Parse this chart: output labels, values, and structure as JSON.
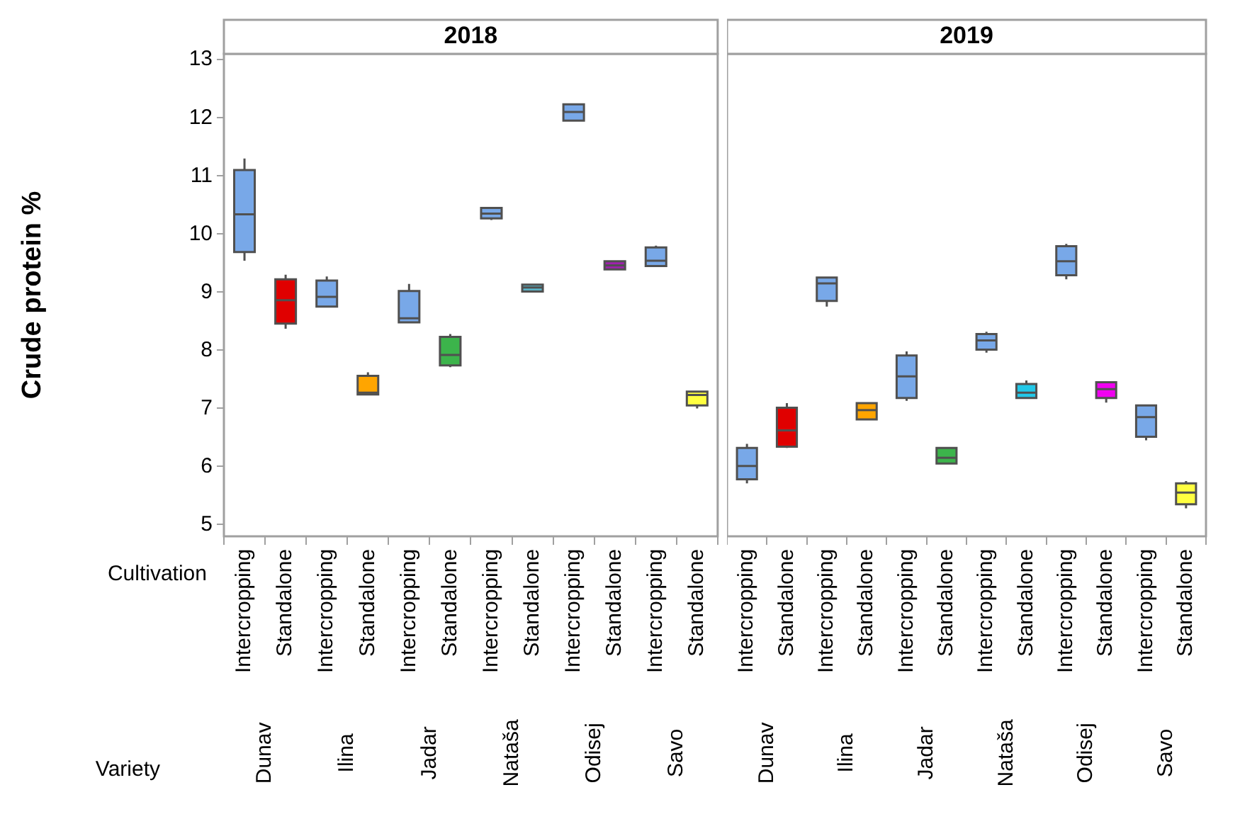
{
  "chart_data": [
    {
      "type": "box",
      "title": "2018",
      "ylabel": "Crude protein %",
      "xlabel": "Cultivation",
      "categories": [
        "Intercropping",
        "Standalone",
        "Intercropping",
        "Standalone",
        "Intercropping",
        "Standalone",
        "Intercropping",
        "Standalone",
        "Intercropping",
        "Standalone",
        "Intercropping",
        "Standalone"
      ],
      "boxes": [
        {
          "low": 9.54,
          "q1": 9.69,
          "median": 10.34,
          "q3": 11.1,
          "high": 11.3
        },
        {
          "low": 8.37,
          "q1": 8.46,
          "median": 8.86,
          "q3": 9.22,
          "high": 9.3
        },
        {
          "low": 8.75,
          "q1": 8.75,
          "median": 8.92,
          "q3": 9.2,
          "high": 9.27
        },
        {
          "low": 7.24,
          "q1": 7.24,
          "median": 7.27,
          "q3": 7.56,
          "high": 7.62
        },
        {
          "low": 8.48,
          "q1": 8.48,
          "median": 8.55,
          "q3": 9.02,
          "high": 9.14
        },
        {
          "low": 7.71,
          "q1": 7.74,
          "median": 7.92,
          "q3": 8.23,
          "high": 8.28
        },
        {
          "low": 10.24,
          "q1": 10.27,
          "median": 10.35,
          "q3": 10.45,
          "high": 10.45
        },
        {
          "low": 9.01,
          "q1": 9.01,
          "median": 9.08,
          "q3": 9.13,
          "high": 9.13
        },
        {
          "low": 11.95,
          "q1": 11.95,
          "median": 12.1,
          "q3": 12.23,
          "high": 12.23
        },
        {
          "low": 9.39,
          "q1": 9.39,
          "median": 9.46,
          "q3": 9.53,
          "high": 9.53
        },
        {
          "low": 9.45,
          "q1": 9.45,
          "median": 9.54,
          "q3": 9.77,
          "high": 9.8
        },
        {
          "low": 7.0,
          "q1": 7.05,
          "median": 7.23,
          "q3": 7.29,
          "high": 7.29
        }
      ],
      "colors": [
        "#78a8e8",
        "#e00000",
        "#78a8e8",
        "#ffa500",
        "#78a8e8",
        "#3cb44b",
        "#78a8e8",
        "#5ab4c8",
        "#78a8e8",
        "#a020b0",
        "#78a8e8",
        "#ffff40"
      ],
      "ylim": [
        4.8,
        13.1
      ],
      "yticks": [
        5,
        6,
        7,
        8,
        9,
        10,
        11,
        12,
        13
      ],
      "annotations": [
        "Variety",
        "Dunav",
        "Ilina",
        "Jadar",
        "Nataša",
        "Odisej",
        "Savo"
      ]
    },
    {
      "type": "box",
      "title": "2019",
      "categories": [
        "Intercropping",
        "Standalone",
        "Intercropping",
        "Standalone",
        "Intercropping",
        "Standalone",
        "Intercropping",
        "Standalone",
        "Intercropping",
        "Standalone",
        "Intercropping",
        "Standalone"
      ],
      "boxes": [
        {
          "low": 5.71,
          "q1": 5.78,
          "median": 6.01,
          "q3": 6.32,
          "high": 6.39
        },
        {
          "low": 6.32,
          "q1": 6.34,
          "median": 6.62,
          "q3": 7.01,
          "high": 7.09
        },
        {
          "low": 8.75,
          "q1": 8.85,
          "median": 9.15,
          "q3": 9.25,
          "high": 9.25
        },
        {
          "low": 6.81,
          "q1": 6.81,
          "median": 6.97,
          "q3": 7.09,
          "high": 7.09
        },
        {
          "low": 7.13,
          "q1": 7.18,
          "median": 7.55,
          "q3": 7.91,
          "high": 7.98
        },
        {
          "low": 6.05,
          "q1": 6.05,
          "median": 6.15,
          "q3": 6.32,
          "high": 6.32
        },
        {
          "low": 7.96,
          "q1": 8.01,
          "median": 8.17,
          "q3": 8.28,
          "high": 8.32
        },
        {
          "low": 7.18,
          "q1": 7.18,
          "median": 7.27,
          "q3": 7.42,
          "high": 7.48
        },
        {
          "low": 9.22,
          "q1": 9.29,
          "median": 9.53,
          "q3": 9.79,
          "high": 9.83
        },
        {
          "low": 7.1,
          "q1": 7.18,
          "median": 7.33,
          "q3": 7.45,
          "high": 7.45
        },
        {
          "low": 6.45,
          "q1": 6.51,
          "median": 6.85,
          "q3": 7.05,
          "high": 7.05
        },
        {
          "low": 5.28,
          "q1": 5.35,
          "median": 5.55,
          "q3": 5.71,
          "high": 5.75
        }
      ],
      "colors": [
        "#78a8e8",
        "#e00000",
        "#78a8e8",
        "#ffa500",
        "#78a8e8",
        "#3cb44b",
        "#78a8e8",
        "#22c8e8",
        "#78a8e8",
        "#f000f0",
        "#78a8e8",
        "#ffff40"
      ],
      "ylim": [
        4.8,
        13.1
      ],
      "yticks": [
        5,
        6,
        7,
        8,
        9,
        10,
        11,
        12,
        13
      ],
      "tick_labels": "x",
      "annotations": [
        "Dunav",
        "Ilina",
        "Jadar",
        "Nataša",
        "Odisej",
        "Savo"
      ]
    }
  ]
}
